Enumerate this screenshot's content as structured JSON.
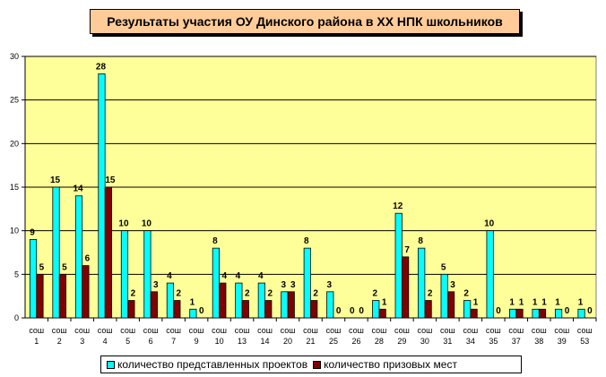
{
  "chart_data": {
    "type": "bar",
    "title": "Результаты участия ОУ Динского района в XX НПК школьников",
    "xlabel": "",
    "ylabel": "",
    "ylim": [
      0,
      30
    ],
    "yticks": [
      0,
      5,
      10,
      15,
      20,
      25,
      30
    ],
    "grid": true,
    "legend_position": "bottom",
    "category_prefix": "сош",
    "categories": [
      "1",
      "2",
      "3",
      "4",
      "5",
      "6",
      "7",
      "9",
      "10",
      "13",
      "14",
      "20",
      "21",
      "25",
      "26",
      "28",
      "29",
      "30",
      "31",
      "34",
      "35",
      "37",
      "38",
      "39",
      "53"
    ],
    "series": [
      {
        "name": "количество представленных проектов",
        "color": "#00ffff",
        "values": [
          9,
          15,
          14,
          28,
          10,
          10,
          4,
          1,
          8,
          4,
          4,
          3,
          8,
          3,
          0,
          2,
          12,
          8,
          5,
          2,
          10,
          1,
          1,
          1,
          1
        ]
      },
      {
        "name": "количество призовых мест",
        "color": "#800000",
        "values": [
          5,
          5,
          6,
          15,
          2,
          3,
          2,
          0,
          4,
          2,
          2,
          3,
          2,
          0,
          0,
          1,
          7,
          2,
          3,
          1,
          0,
          1,
          1,
          0,
          0
        ]
      }
    ]
  },
  "colors": {
    "plot_area": "#ffff99"
  }
}
